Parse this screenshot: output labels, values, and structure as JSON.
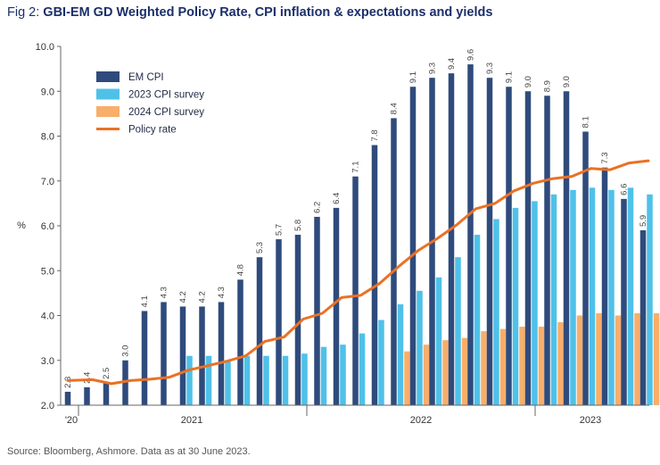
{
  "title_prefix": "Fig 2: ",
  "title_main": "GBI-EM GD Weighted Policy Rate, CPI inflation & expectations and yields",
  "source": "Source: Bloomberg, Ashmore. Data as at 30 June 2023.",
  "colors": {
    "em_cpi": "#2f4b7c",
    "cpi_2023": "#4fc1e9",
    "cpi_2024": "#f9ae6a",
    "policy": "#ea7125"
  },
  "chart_data": {
    "type": "bar",
    "title": "GBI-EM GD Weighted Policy Rate, CPI inflation & expectations and yields",
    "ylabel": "%",
    "ylim": [
      2.0,
      10.0
    ],
    "yticks": [
      "2.0",
      "3.0",
      "4.0",
      "5.0",
      "6.0",
      "7.0",
      "8.0",
      "9.0",
      "10.0"
    ],
    "x_year_labels": [
      "'20",
      "2021",
      "2022",
      "2023"
    ],
    "legend": [
      "EM CPI",
      "2023 CPI survey",
      "2024 CPI survey",
      "Policy rate"
    ],
    "legend_position": "top-left",
    "em_cpi": [
      2.3,
      2.4,
      2.5,
      3.0,
      4.1,
      4.3,
      4.2,
      4.2,
      4.3,
      4.8,
      5.3,
      5.7,
      5.8,
      6.2,
      6.4,
      7.1,
      7.8,
      8.4,
      9.1,
      9.3,
      9.4,
      9.6,
      9.3,
      9.1,
      9.0,
      8.9,
      9.0,
      8.1,
      7.3,
      6.6,
      5.9
    ],
    "em_cpi_labels": [
      "2.3",
      "2.4",
      "2.5",
      "3.0",
      "4.1",
      "4.3",
      "4.2",
      "4.2",
      "4.3",
      "4.8",
      "5.3",
      "5.7",
      "5.8",
      "6.2",
      "6.4",
      "7.1",
      "7.8",
      "8.4",
      "9.1",
      "9.3",
      "9.4",
      "9.6",
      "9.3",
      "9.1",
      "9.0",
      "8.9",
      "9.0",
      "8.1",
      "7.3",
      "6.6",
      "5.9"
    ],
    "cpi_2023_survey": [
      null,
      null,
      null,
      null,
      null,
      null,
      3.1,
      3.1,
      3.0,
      3.1,
      3.1,
      3.1,
      3.15,
      3.3,
      3.35,
      3.6,
      3.9,
      4.25,
      4.55,
      4.85,
      5.3,
      5.8,
      6.15,
      6.4,
      6.55,
      6.7,
      6.8,
      6.85,
      6.8,
      6.85,
      6.7
    ],
    "cpi_2024_survey": [
      null,
      null,
      null,
      null,
      null,
      null,
      null,
      null,
      null,
      null,
      null,
      null,
      null,
      null,
      null,
      null,
      null,
      3.2,
      3.35,
      3.45,
      3.5,
      3.65,
      3.7,
      3.75,
      3.75,
      3.85,
      4.0,
      4.05,
      4.0,
      4.05,
      4.05
    ],
    "policy_rate": [
      2.55,
      2.57,
      2.48,
      2.55,
      2.58,
      2.62,
      2.78,
      2.88,
      2.98,
      3.1,
      3.42,
      3.52,
      3.92,
      4.05,
      4.4,
      4.45,
      4.72,
      5.1,
      5.45,
      5.72,
      6.02,
      6.38,
      6.5,
      6.78,
      6.95,
      7.05,
      7.1,
      7.28,
      7.25,
      7.4,
      7.45
    ]
  }
}
